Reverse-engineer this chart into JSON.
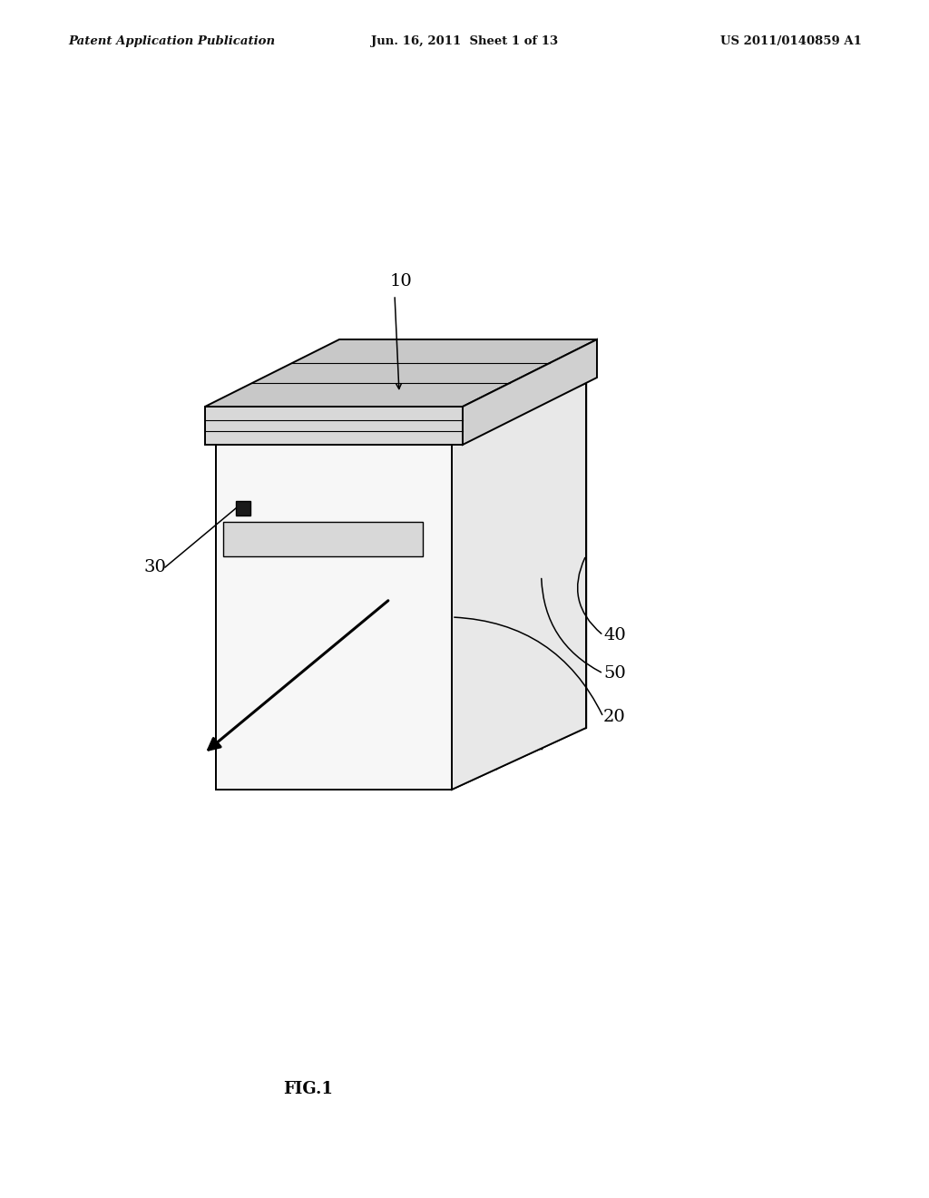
{
  "background_color": "#ffffff",
  "header_left": "Patent Application Publication",
  "header_center": "Jun. 16, 2011  Sheet 1 of 13",
  "header_right": "US 2011/0140859 A1",
  "figure_label": "FIG.1",
  "header_fontsize": 9.5,
  "figure_label_fontsize": 13,
  "label_fontsize": 14,
  "line_color": "#000000"
}
